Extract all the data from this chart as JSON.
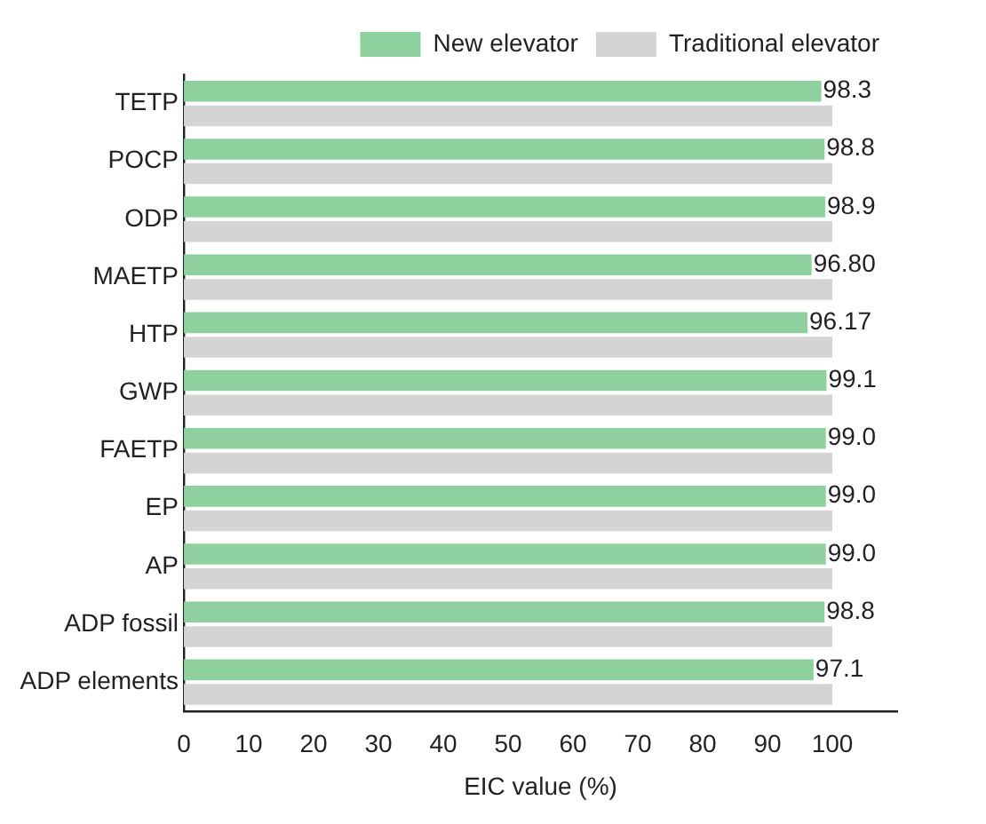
{
  "chart_data": {
    "type": "bar",
    "orientation": "horizontal",
    "xlabel": "EIC value (%)",
    "categories": [
      "TETP",
      "POCP",
      "ODP",
      "MAETP",
      "HTP",
      "GWP",
      "FAETP",
      "EP",
      "AP",
      "ADP fossil",
      "ADP elements"
    ],
    "series": [
      {
        "name": "New elevator",
        "color": "#8fd19e",
        "values": [
          98.3,
          98.8,
          98.9,
          96.8,
          96.17,
          99.1,
          99.0,
          99.0,
          99.0,
          98.8,
          97.1
        ],
        "value_labels": [
          "98.3",
          "98.8",
          "98.9",
          "96.80",
          "96.17",
          "99.1",
          "99.0",
          "99.0",
          "99.0",
          "98.8",
          "97.1"
        ]
      },
      {
        "name": "Traditional elevator",
        "color": "#d4d4d4",
        "values": [
          100,
          100,
          100,
          100,
          100,
          100,
          100,
          100,
          100,
          100,
          100
        ]
      }
    ],
    "xlim": [
      0,
      110
    ],
    "xticks": [
      0,
      10,
      20,
      30,
      40,
      50,
      60,
      70,
      80,
      90,
      100
    ],
    "grid": false,
    "legend": "top right"
  }
}
